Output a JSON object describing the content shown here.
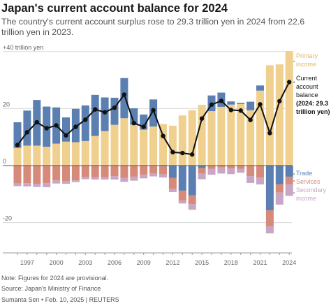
{
  "header": {
    "title": "Japan's current account balance for 2024",
    "subtitle": "The country's current account surplus rose to 29.3 trillion yen in 2024 from 22.6 trillion yen in 2023."
  },
  "footer": {
    "note": "Note: Figures for 2024 are provisional.",
    "source": "Source: Japan's Ministry of Finance",
    "credit": "Sumanta Sen • Feb. 10, 2025 | REUTERS"
  },
  "colors": {
    "primary_income": "#f0d08e",
    "trade": "#5a7fb0",
    "services": "#d68a7a",
    "secondary_income": "#c8a6c4",
    "current_account": "#111111",
    "grid": "#d8d8d8"
  },
  "chart_data": {
    "type": "bar",
    "unit_label": "+40 trillion yen",
    "x": [
      1996,
      1997,
      1998,
      1999,
      2000,
      2001,
      2002,
      2003,
      2004,
      2005,
      2006,
      2007,
      2008,
      2009,
      2010,
      2011,
      2012,
      2013,
      2014,
      2015,
      2016,
      2017,
      2018,
      2019,
      2020,
      2021,
      2022,
      2023,
      2024
    ],
    "x_tick_labels": [
      "1997",
      "2000",
      "2003",
      "2006",
      "2009",
      "2012",
      "2015",
      "2018",
      "2021",
      "2024"
    ],
    "y_tick_labels": [
      "20",
      "0",
      "-20"
    ],
    "ylim": [
      -30,
      40
    ],
    "series": [
      {
        "name": "Primary income",
        "values": [
          6.2,
          7.0,
          7.0,
          6.6,
          7.7,
          8.4,
          8.2,
          8.6,
          10.4,
          12.1,
          14.3,
          16.6,
          14.3,
          12.6,
          13.7,
          14.6,
          14.0,
          17.6,
          19.4,
          21.3,
          19.1,
          20.6,
          21.4,
          21.6,
          19.4,
          26.3,
          35.2,
          35.5,
          40.2
        ]
      },
      {
        "name": "Trade",
        "values": [
          9.0,
          12.3,
          16.0,
          14.1,
          12.7,
          8.5,
          11.7,
          12.5,
          14.4,
          11.8,
          9.5,
          14.1,
          5.8,
          5.3,
          9.5,
          -0.3,
          -4.3,
          -8.8,
          -10.5,
          -0.9,
          5.5,
          5.0,
          1.1,
          0.4,
          3.0,
          1.8,
          -15.7,
          -6.5,
          -3.9
        ]
      },
      {
        "name": "Services",
        "values": [
          -6.3,
          -6.2,
          -6.4,
          -6.2,
          -5.2,
          -5.4,
          -5.2,
          -4.0,
          -4.1,
          -4.1,
          -3.7,
          -4.3,
          -3.9,
          -3.2,
          -2.7,
          -2.8,
          -3.8,
          -3.5,
          -3.0,
          -1.9,
          -1.1,
          -0.7,
          -1.0,
          -1.1,
          -3.7,
          -4.2,
          -5.6,
          -3.0,
          -2.6
        ]
      },
      {
        "name": "Secondary income",
        "values": [
          -0.9,
          -1.1,
          -1.1,
          -1.4,
          -1.1,
          -1.0,
          -0.6,
          -0.8,
          -0.8,
          -0.8,
          -1.2,
          -1.4,
          -1.4,
          -1.3,
          -1.1,
          -1.1,
          -1.2,
          -1.0,
          -2.0,
          -2.0,
          -2.1,
          -2.1,
          -2.0,
          -1.4,
          -2.4,
          -2.4,
          -2.5,
          -4.2,
          -4.1
        ]
      },
      {
        "name": "Current account balance (2024: 29.3 trillion yen)",
        "values": [
          7.2,
          11.7,
          15.2,
          13.1,
          14.1,
          10.6,
          13.6,
          16.1,
          19.7,
          18.7,
          20.3,
          24.9,
          14.9,
          13.6,
          19.4,
          10.4,
          4.7,
          4.4,
          3.9,
          16.5,
          21.4,
          22.7,
          19.5,
          19.3,
          16.0,
          21.5,
          11.4,
          22.6,
          29.3
        ]
      }
    ],
    "legend_labels": {
      "primary": [
        "Primary",
        "income"
      ],
      "current": [
        "Current",
        "account",
        "balance",
        "(2024: 29.3",
        "trillion yen)"
      ],
      "trade": "Trade",
      "services": "Services",
      "secondary": [
        "Secondary",
        "income"
      ]
    }
  }
}
